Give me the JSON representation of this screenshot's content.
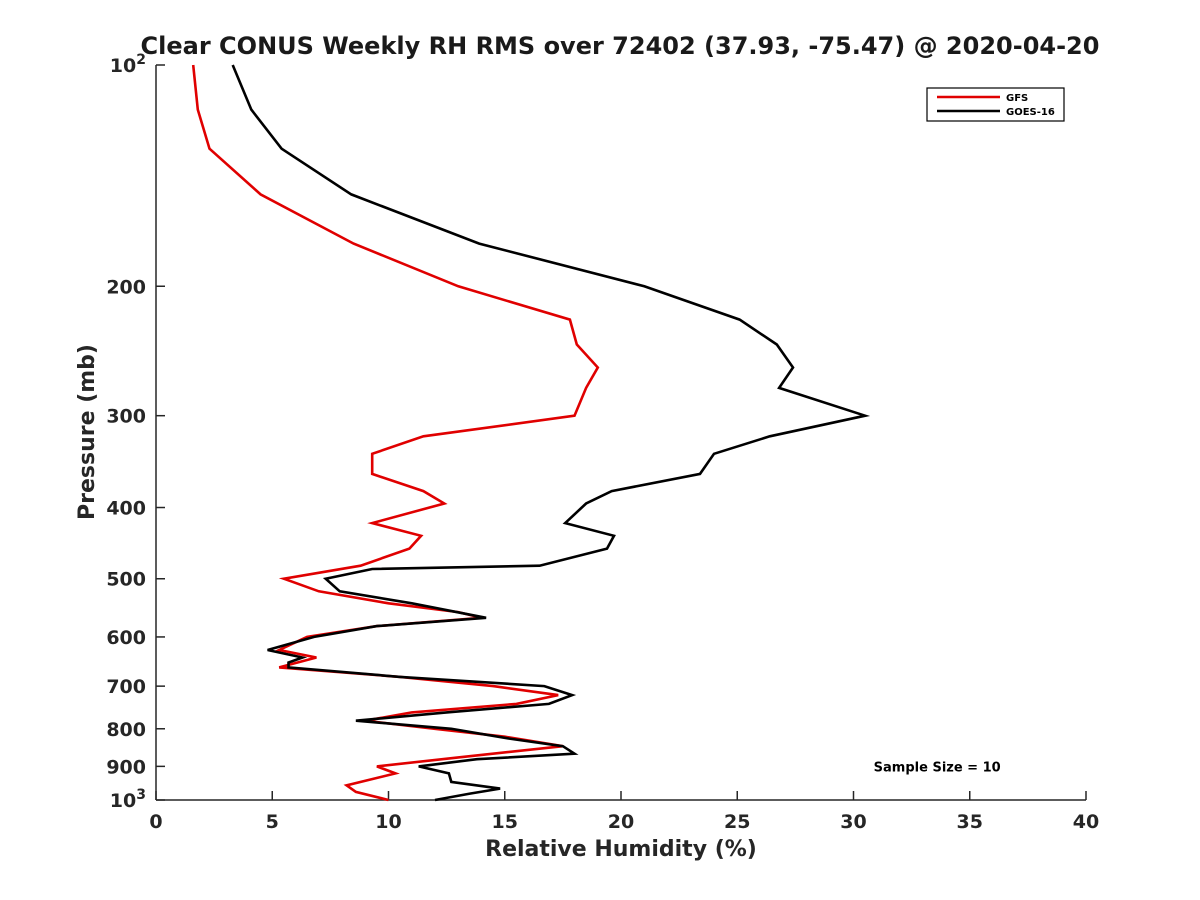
{
  "chart_data": {
    "type": "line",
    "title": "Clear CONUS Weekly RH RMS over 72402 (37.93, -75.47) @ 2020-04-20",
    "xlabel": "Relative Humidity (%)",
    "ylabel": "Pressure (mb)",
    "xlim": [
      0,
      40
    ],
    "ylim": [
      100,
      1000
    ],
    "yscale": "log",
    "y_reversed": true,
    "grid": false,
    "legend_position": "top-right",
    "x_ticks": [
      0,
      5,
      10,
      15,
      20,
      25,
      30,
      35,
      40
    ],
    "y_ticks": [
      {
        "value": 100,
        "base": "10",
        "exp": "2"
      },
      {
        "value": 200,
        "label": "200"
      },
      {
        "value": 300,
        "label": "300"
      },
      {
        "value": 400,
        "label": "400"
      },
      {
        "value": 500,
        "label": "500"
      },
      {
        "value": 600,
        "label": "600"
      },
      {
        "value": 700,
        "label": "700"
      },
      {
        "value": 800,
        "label": "800"
      },
      {
        "value": 900,
        "label": "900"
      },
      {
        "value": 1000,
        "base": "10",
        "exp": "3"
      }
    ],
    "series": [
      {
        "name": "GFS",
        "color": "#e00000",
        "points": [
          [
            1.6,
            100
          ],
          [
            1.8,
            115
          ],
          [
            2.3,
            130
          ],
          [
            4.5,
            150
          ],
          [
            8.5,
            175
          ],
          [
            13,
            200
          ],
          [
            17.8,
            222
          ],
          [
            18.1,
            240
          ],
          [
            19.0,
            258
          ],
          [
            18.5,
            275
          ],
          [
            18.0,
            300
          ],
          [
            11.5,
            320
          ],
          [
            9.3,
            338
          ],
          [
            9.3,
            360
          ],
          [
            11.5,
            380
          ],
          [
            12.4,
            395
          ],
          [
            9.3,
            420
          ],
          [
            11.4,
            437
          ],
          [
            10.9,
            455
          ],
          [
            8.8,
            480
          ],
          [
            5.5,
            500
          ],
          [
            7,
            520
          ],
          [
            10,
            540
          ],
          [
            13,
            555
          ],
          [
            14,
            565
          ],
          [
            9.5,
            580
          ],
          [
            6.5,
            600
          ],
          [
            5.3,
            625
          ],
          [
            6.9,
            640
          ],
          [
            5.3,
            660
          ],
          [
            10.5,
            680
          ],
          [
            14.5,
            700
          ],
          [
            17.3,
            720
          ],
          [
            15.5,
            740
          ],
          [
            11,
            760
          ],
          [
            9,
            780
          ],
          [
            12,
            800
          ],
          [
            15,
            820
          ],
          [
            17.5,
            845
          ],
          [
            13,
            875
          ],
          [
            9.5,
            900
          ],
          [
            10.3,
            920
          ],
          [
            8.2,
            955
          ],
          [
            8.6,
            975
          ],
          [
            10,
            1000
          ]
        ]
      },
      {
        "name": "GOES-16",
        "color": "#000000",
        "points": [
          [
            3.3,
            100
          ],
          [
            4.1,
            115
          ],
          [
            5.4,
            130
          ],
          [
            8.4,
            150
          ],
          [
            13.9,
            175
          ],
          [
            21,
            200
          ],
          [
            25.1,
            222
          ],
          [
            26.7,
            240
          ],
          [
            27.4,
            258
          ],
          [
            26.8,
            275
          ],
          [
            30.5,
            300
          ],
          [
            26.4,
            320
          ],
          [
            24,
            338
          ],
          [
            23.4,
            360
          ],
          [
            19.6,
            380
          ],
          [
            18.5,
            395
          ],
          [
            17.6,
            420
          ],
          [
            19.7,
            437
          ],
          [
            19.4,
            455
          ],
          [
            16.5,
            480
          ],
          [
            9.3,
            485
          ],
          [
            7.3,
            500
          ],
          [
            7.9,
            520
          ],
          [
            11,
            540
          ],
          [
            14.2,
            565
          ],
          [
            9.5,
            580
          ],
          [
            6.8,
            600
          ],
          [
            4.8,
            625
          ],
          [
            6.3,
            640
          ],
          [
            5.7,
            650
          ],
          [
            5.7,
            660
          ],
          [
            10.5,
            680
          ],
          [
            16.7,
            700
          ],
          [
            17.9,
            720
          ],
          [
            16.9,
            740
          ],
          [
            12.5,
            760
          ],
          [
            8.6,
            780
          ],
          [
            12.7,
            800
          ],
          [
            15.2,
            825
          ],
          [
            17.5,
            845
          ],
          [
            18,
            865
          ],
          [
            13.8,
            880
          ],
          [
            11.3,
            900
          ],
          [
            12.6,
            920
          ],
          [
            12.7,
            945
          ],
          [
            14.8,
            965
          ],
          [
            13.5,
            980
          ],
          [
            12,
            1000
          ]
        ]
      }
    ],
    "annotations": [
      {
        "text": "Sample Size = 10",
        "x": 33.6,
        "y": 900
      }
    ]
  }
}
